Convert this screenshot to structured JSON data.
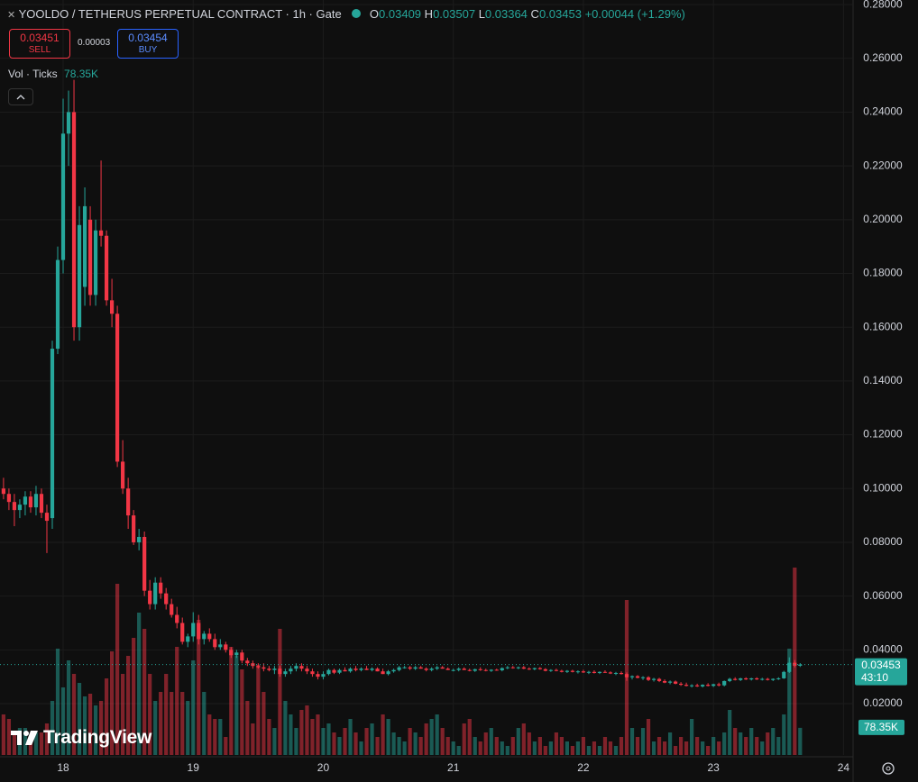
{
  "header": {
    "title": "YOOLDO / TETHERUS PERPETUAL CONTRACT · 1h · Gate",
    "ohlc_letters": [
      "O",
      "H",
      "L",
      "C"
    ],
    "change": "+0.00044 (+1.29%)",
    "sell_price": "0.03451",
    "sell_label": "SELL",
    "spread": "0.00003",
    "buy_price": "0.03454",
    "buy_label": "BUY",
    "volume_title": "Vol · Ticks",
    "countdown": "43:10",
    "last_volume_label": "78.35K",
    "watermark": "TradingView"
  },
  "chart_data": {
    "type": "candlestick",
    "x": [
      13,
      14,
      15,
      16,
      17,
      18,
      19,
      20,
      21,
      22,
      23,
      24,
      25,
      26,
      27,
      28,
      29,
      30,
      31,
      32,
      33,
      34,
      35,
      36,
      37,
      38,
      39,
      40,
      41,
      42,
      43,
      44,
      45,
      46,
      47,
      48,
      49,
      50,
      51,
      52,
      53,
      54,
      55,
      56,
      57,
      58,
      59,
      60,
      61,
      62,
      63,
      64,
      65,
      66,
      67,
      68,
      69,
      70,
      71,
      72,
      73,
      74,
      75,
      76,
      77,
      78,
      79,
      80,
      81,
      82,
      83,
      84,
      85,
      86,
      87,
      88,
      89,
      90,
      91,
      92,
      93,
      94,
      95,
      96,
      97,
      98,
      99,
      100,
      101,
      102,
      103,
      104,
      105,
      106,
      107,
      108,
      109,
      110,
      111,
      112,
      113,
      114,
      115,
      116,
      117,
      118,
      119,
      120,
      121,
      122,
      123,
      124,
      125,
      126,
      127,
      128,
      129,
      130,
      131,
      132,
      133,
      134,
      135,
      136,
      137,
      138,
      139,
      140,
      141,
      142,
      143,
      144,
      145,
      146,
      147,
      148,
      149,
      150,
      151,
      152,
      153,
      154,
      155,
      156,
      157,
      158,
      159,
      160
    ],
    "open": [
      0.1,
      0.098,
      0.095,
      0.092,
      0.094,
      0.097,
      0.093,
      0.098,
      0.091,
      0.089,
      0.152,
      0.185,
      0.232,
      0.24,
      0.16,
      0.175,
      0.2,
      0.172,
      0.196,
      0.194,
      0.17,
      0.165,
      0.11,
      0.1,
      0.09,
      0.08,
      0.082,
      0.062,
      0.057,
      0.065,
      0.061,
      0.057,
      0.053,
      0.05,
      0.043,
      0.045,
      0.05,
      0.044,
      0.046,
      0.044,
      0.041,
      0.042,
      0.04,
      0.038,
      0.039,
      0.036,
      0.035,
      0.034,
      0.0335,
      0.033,
      0.0325,
      0.033,
      0.031,
      0.032,
      0.033,
      0.034,
      0.033,
      0.032,
      0.031,
      0.03,
      0.031,
      0.0325,
      0.0315,
      0.0325,
      0.032,
      0.033,
      0.0325,
      0.033,
      0.0325,
      0.033,
      0.032,
      0.031,
      0.032,
      0.0325,
      0.0335,
      0.0335,
      0.033,
      0.0335,
      0.033,
      0.0325,
      0.033,
      0.0335,
      0.033,
      0.0325,
      0.0325,
      0.033,
      0.0325,
      0.0322,
      0.0328,
      0.0325,
      0.0322,
      0.0326,
      0.0324,
      0.0332,
      0.0335,
      0.0333,
      0.0335,
      0.033,
      0.0328,
      0.0332,
      0.0328,
      0.0322,
      0.0325,
      0.0322,
      0.0318,
      0.0322,
      0.0318,
      0.032,
      0.0316,
      0.0318,
      0.0314,
      0.0318,
      0.0316,
      0.0312,
      0.0314,
      0.031,
      0.0298,
      0.0302,
      0.0296,
      0.0298,
      0.0288,
      0.0292,
      0.0284,
      0.0278,
      0.0282,
      0.0274,
      0.027,
      0.0266,
      0.0268,
      0.0264,
      0.027,
      0.0266,
      0.0272,
      0.0268,
      0.0284,
      0.0292,
      0.0288,
      0.0294,
      0.029,
      0.0294,
      0.029,
      0.0292,
      0.0288,
      0.0292,
      0.0294,
      0.0318,
      0.0352,
      0.03409
    ],
    "high": [
      0.104,
      0.1,
      0.098,
      0.096,
      0.099,
      0.099,
      0.101,
      0.1,
      0.094,
      0.155,
      0.19,
      0.245,
      0.248,
      0.252,
      0.205,
      0.212,
      0.205,
      0.2,
      0.222,
      0.196,
      0.178,
      0.168,
      0.118,
      0.104,
      0.092,
      0.085,
      0.084,
      0.066,
      0.067,
      0.067,
      0.063,
      0.059,
      0.056,
      0.052,
      0.046,
      0.054,
      0.053,
      0.047,
      0.048,
      0.046,
      0.044,
      0.043,
      0.041,
      0.04,
      0.04,
      0.037,
      0.036,
      0.035,
      0.035,
      0.034,
      0.034,
      0.034,
      0.033,
      0.034,
      0.035,
      0.035,
      0.034,
      0.033,
      0.032,
      0.032,
      0.033,
      0.033,
      0.033,
      0.0335,
      0.0335,
      0.034,
      0.0335,
      0.034,
      0.0335,
      0.0335,
      0.033,
      0.0325,
      0.033,
      0.034,
      0.034,
      0.034,
      0.034,
      0.034,
      0.0335,
      0.0335,
      0.034,
      0.034,
      0.0335,
      0.033,
      0.0335,
      0.0335,
      0.033,
      0.033,
      0.0335,
      0.033,
      0.0328,
      0.033,
      0.0335,
      0.034,
      0.034,
      0.0338,
      0.034,
      0.0335,
      0.0334,
      0.0336,
      0.0332,
      0.0328,
      0.033,
      0.0326,
      0.0325,
      0.0326,
      0.0324,
      0.0326,
      0.0322,
      0.0324,
      0.032,
      0.0324,
      0.032,
      0.0318,
      0.032,
      0.0316,
      0.0305,
      0.0306,
      0.0302,
      0.0302,
      0.0296,
      0.0296,
      0.029,
      0.0286,
      0.0286,
      0.028,
      0.0278,
      0.0272,
      0.0274,
      0.0272,
      0.0276,
      0.0274,
      0.0278,
      0.0286,
      0.0296,
      0.0298,
      0.0296,
      0.0298,
      0.0296,
      0.0298,
      0.0296,
      0.0296,
      0.0294,
      0.0298,
      0.0322,
      0.0372,
      0.0362,
      0.03507
    ],
    "low": [
      0.096,
      0.092,
      0.086,
      0.089,
      0.09,
      0.091,
      0.09,
      0.089,
      0.076,
      0.085,
      0.15,
      0.18,
      0.22,
      0.155,
      0.155,
      0.168,
      0.168,
      0.168,
      0.19,
      0.168,
      0.16,
      0.108,
      0.098,
      0.085,
      0.079,
      0.077,
      0.06,
      0.055,
      0.055,
      0.059,
      0.055,
      0.052,
      0.048,
      0.042,
      0.041,
      0.043,
      0.042,
      0.042,
      0.043,
      0.04,
      0.04,
      0.039,
      0.037,
      0.037,
      0.035,
      0.034,
      0.033,
      0.033,
      0.032,
      0.032,
      0.031,
      0.03,
      0.03,
      0.031,
      0.032,
      0.032,
      0.031,
      0.03,
      0.029,
      0.029,
      0.0305,
      0.031,
      0.031,
      0.032,
      0.0315,
      0.032,
      0.032,
      0.0325,
      0.032,
      0.032,
      0.031,
      0.0305,
      0.0315,
      0.032,
      0.033,
      0.0325,
      0.0325,
      0.033,
      0.032,
      0.032,
      0.0325,
      0.033,
      0.0325,
      0.032,
      0.032,
      0.0325,
      0.032,
      0.0318,
      0.0322,
      0.032,
      0.0318,
      0.0322,
      0.032,
      0.0328,
      0.033,
      0.0328,
      0.0328,
      0.0325,
      0.0324,
      0.0326,
      0.032,
      0.0318,
      0.032,
      0.0316,
      0.0314,
      0.0316,
      0.0312,
      0.0314,
      0.031,
      0.0312,
      0.031,
      0.0314,
      0.031,
      0.0306,
      0.0308,
      0.0285,
      0.029,
      0.0294,
      0.0288,
      0.0284,
      0.0282,
      0.028,
      0.0276,
      0.0272,
      0.0272,
      0.0266,
      0.0264,
      0.026,
      0.0262,
      0.026,
      0.0264,
      0.0262,
      0.0264,
      0.0264,
      0.028,
      0.0286,
      0.0284,
      0.0288,
      0.0286,
      0.0288,
      0.0286,
      0.0286,
      0.0284,
      0.0288,
      0.0292,
      0.0314,
      0.0335,
      0.03364
    ],
    "close": [
      0.098,
      0.095,
      0.092,
      0.094,
      0.097,
      0.093,
      0.098,
      0.091,
      0.088,
      0.152,
      0.185,
      0.232,
      0.24,
      0.16,
      0.198,
      0.205,
      0.172,
      0.196,
      0.194,
      0.17,
      0.165,
      0.11,
      0.1,
      0.09,
      0.08,
      0.082,
      0.062,
      0.057,
      0.065,
      0.061,
      0.057,
      0.053,
      0.05,
      0.043,
      0.045,
      0.05,
      0.044,
      0.046,
      0.044,
      0.041,
      0.042,
      0.04,
      0.038,
      0.039,
      0.036,
      0.035,
      0.034,
      0.0335,
      0.033,
      0.0325,
      0.033,
      0.031,
      0.032,
      0.033,
      0.034,
      0.033,
      0.032,
      0.031,
      0.03,
      0.031,
      0.0325,
      0.0315,
      0.0325,
      0.032,
      0.033,
      0.0325,
      0.033,
      0.0325,
      0.033,
      0.032,
      0.031,
      0.032,
      0.0325,
      0.0335,
      0.0335,
      0.033,
      0.0335,
      0.033,
      0.0325,
      0.033,
      0.0335,
      0.033,
      0.0325,
      0.0325,
      0.033,
      0.0325,
      0.0322,
      0.0328,
      0.0325,
      0.0322,
      0.0326,
      0.0324,
      0.0332,
      0.0335,
      0.0333,
      0.0335,
      0.033,
      0.0328,
      0.0332,
      0.0328,
      0.0322,
      0.0325,
      0.0322,
      0.0318,
      0.0322,
      0.0318,
      0.032,
      0.0316,
      0.0318,
      0.0314,
      0.0318,
      0.0316,
      0.0312,
      0.0314,
      0.031,
      0.0298,
      0.0302,
      0.0296,
      0.0298,
      0.0288,
      0.0292,
      0.0284,
      0.0278,
      0.0282,
      0.0274,
      0.027,
      0.0266,
      0.0268,
      0.0264,
      0.027,
      0.0266,
      0.0272,
      0.0268,
      0.0284,
      0.0292,
      0.0288,
      0.0294,
      0.029,
      0.0294,
      0.029,
      0.0292,
      0.0288,
      0.0292,
      0.0294,
      0.0318,
      0.0352,
      0.0341,
      0.03453
    ],
    "volume": [
      117000,
      104000,
      65000,
      78000,
      78000,
      52000,
      65000,
      65000,
      91000,
      156000,
      306800,
      195000,
      273000,
      234000,
      208000,
      169000,
      176800,
      143000,
      156000,
      221000,
      299000,
      494000,
      234000,
      286000,
      338000,
      410800,
      364000,
      234000,
      156000,
      182000,
      234000,
      182000,
      312000,
      182000,
      156000,
      273000,
      390000,
      182000,
      117000,
      104000,
      104000,
      52000,
      312000,
      286000,
      247000,
      156000,
      91000,
      260000,
      182000,
      104000,
      78000,
      364000,
      156000,
      117000,
      78000,
      130000,
      143000,
      104000,
      117000,
      78000,
      91000,
      65000,
      52000,
      78000,
      104000,
      65000,
      39000,
      78000,
      91000,
      52000,
      117000,
      104000,
      65000,
      52000,
      39000,
      78000,
      65000,
      52000,
      91000,
      104000,
      117000,
      78000,
      52000,
      39000,
      26000,
      91000,
      104000,
      52000,
      39000,
      65000,
      78000,
      52000,
      39000,
      26000,
      52000,
      78000,
      91000,
      65000,
      39000,
      52000,
      26000,
      39000,
      65000,
      52000,
      39000,
      26000,
      39000,
      52000,
      26000,
      39000,
      26000,
      52000,
      39000,
      26000,
      52000,
      447200,
      78000,
      52000,
      78000,
      104000,
      39000,
      52000,
      39000,
      65000,
      26000,
      52000,
      39000,
      104000,
      52000,
      39000,
      26000,
      52000,
      39000,
      65000,
      130000,
      78000,
      65000,
      52000,
      78000,
      52000,
      39000,
      65000,
      78000,
      52000,
      117000,
      306800,
      540800,
      78350
    ],
    "up_color": "#26a69a",
    "down_color": "#f23645",
    "xlim": [
      12.35,
      169.6
    ],
    "xticks": [
      {
        "value": 24,
        "label": "18"
      },
      {
        "value": 48,
        "label": "19"
      },
      {
        "value": 72,
        "label": "20"
      },
      {
        "value": 96,
        "label": "21"
      },
      {
        "value": 120,
        "label": "22"
      },
      {
        "value": 144,
        "label": "23"
      },
      {
        "value": 168,
        "label": "24"
      }
    ],
    "ylim": [
      0.0009,
      0.2817
    ],
    "yticks": [
      {
        "value": 0.02,
        "label": "0.02000"
      },
      {
        "value": 0.04,
        "label": "0.04000"
      },
      {
        "value": 0.06,
        "label": "0.06000"
      },
      {
        "value": 0.08,
        "label": "0.08000"
      },
      {
        "value": 0.1,
        "label": "0.10000"
      },
      {
        "value": 0.12,
        "label": "0.12000"
      },
      {
        "value": 0.14,
        "label": "0.14000"
      },
      {
        "value": 0.16,
        "label": "0.16000"
      },
      {
        "value": 0.18,
        "label": "0.18000"
      },
      {
        "value": 0.2,
        "label": "0.20000"
      },
      {
        "value": 0.22,
        "label": "0.22000"
      },
      {
        "value": 0.24,
        "label": "0.24000"
      },
      {
        "value": 0.26,
        "label": "0.26000"
      },
      {
        "value": 0.28,
        "label": "0.28000"
      }
    ],
    "grid": true
  }
}
